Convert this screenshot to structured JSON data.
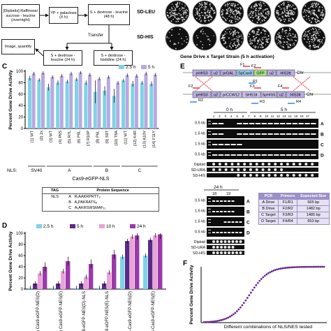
{
  "panel_letters": {
    "c": "C",
    "d": "D",
    "e": "E",
    "f": "F"
  },
  "flow": {
    "b1": "[Diploids] Raffinose/ sucrose - leucine (overnight)",
    "b2": "YP + galactose (X h)",
    "b3": "S + dextrose - leucine (48 h)",
    "transfer": "Transfer",
    "b4": "Image, quantify",
    "b5": "S + dextrose - leucine (24 h)",
    "b6": "S + dextrose - histidine (24 h)"
  },
  "plates": {
    "row1": "SD-LEU",
    "row2": "SD-HIS",
    "caption": "Gene Drive x Target Strain (5 h activation)"
  },
  "panelC": {
    "ylabel": "Percent Gene Drive Activity",
    "legend": [
      "2.5 h",
      "5 h"
    ],
    "nls_label": "NLS:",
    "groups": [
      "SV40",
      "A",
      "B",
      "C"
    ],
    "xlabel": "Cas9-eGFP-NLS",
    "table_headers": [
      "TAG",
      "Protein Sequence"
    ],
    "table_tag": "NLS",
    "table_rows": [
      {
        "id": "A",
        "seq": "R₁AAKRPRTT₉"
      },
      {
        "id": "B",
        "seq": "A₁PAKRATS₈"
      },
      {
        "id": "C",
        "seq": "A₁AKRSWSMAF₁₁"
      }
    ]
  },
  "panelD": {
    "ylabel": "Percent Gene Drive Activity",
    "legend": [
      "2.5 h",
      "5 h",
      "10 h",
      "24 h"
    ]
  },
  "panelE": {
    "construct_labels": [
      "prHIS3",
      "u2",
      "prGAL",
      "SpCas9",
      "GFP",
      "u2",
      "HIS3tt",
      "Chr"
    ],
    "target_labels": [
      "prHIS3",
      "u2",
      "prCCW12",
      "SHS1tt",
      "SpHIS5",
      "u2",
      "HIS3tt",
      "Chr"
    ],
    "primers_top": [
      "F1",
      "F2",
      "R1"
    ],
    "primers_bot": [
      "F2",
      "R2",
      "F3",
      "R3",
      "F4",
      "R4"
    ],
    "gel1": {
      "times": [
        "0 h",
        "5 h"
      ],
      "lanes": [
        "1",
        "2",
        "3",
        "4",
        "5",
        "6",
        "7",
        "8",
        "9",
        "10",
        "11",
        "12",
        "13",
        "14",
        "15",
        "16",
        "17"
      ],
      "sizes": [
        "0.5 kb",
        "1.5 kb",
        "1.5 kb",
        "0.5 kb"
      ],
      "rows": [
        "A",
        "B",
        "C",
        "D"
      ],
      "bottom": [
        "Diploid",
        "SD-URA",
        "SD-HIS"
      ]
    },
    "gel2": {
      "time": "24 h",
      "lanes_hi": [
        "18",
        "19"
      ],
      "sizes": [
        "0.5 kb",
        "1.5 kb",
        "1.5 kb",
        "0.5 kb"
      ],
      "rows": [
        "A",
        "B",
        "C",
        "D"
      ],
      "bottom": [
        "Diploid",
        "SD-URA",
        "SD-HIS"
      ]
    },
    "pcr_table": {
      "headers": [
        "PCR",
        "Primers",
        "Expected Size"
      ],
      "rows": [
        [
          "A",
          "Drive",
          "F1/R1",
          "565 bp"
        ],
        [
          "B",
          "Drive",
          "F2/R2",
          "1482 bp"
        ],
        [
          "C",
          "Target",
          "F3/R3",
          "1485 bp"
        ],
        [
          "D",
          "Target",
          "F4/R4",
          "653 bp"
        ]
      ]
    }
  },
  "panelF": {
    "ylabel": "Percent Gene Drive Activity",
    "xlabel": "Different combinations of NLS/NES tested"
  },
  "colors": {
    "cyan": "#7fd3e6",
    "blue": "#3b72c4",
    "pink": "#e9a3d7",
    "purple": "#7a2b90",
    "lavender": "#b9a9e0"
  },
  "chart_data": [
    {
      "type": "bar",
      "panel": "C",
      "categories": [
        "(1) WT",
        "(2) 2x",
        "(3) WT",
        "(4) P6S",
        "(5) R7L",
        "(6) P8L",
        "(7) R10P",
        "(8) P6L",
        "(9) S9T",
        "(10) T8A",
        "(11) WT",
        "(12) K4R",
        "(13) A10V",
        "(14) F11Y"
      ],
      "series": [
        {
          "name": "2.5 h",
          "values": [
            88,
            85,
            72,
            80,
            82,
            86,
            80,
            64,
            66,
            57,
            84,
            78,
            80,
            78
          ]
        },
        {
          "name": "5 h",
          "values": [
            96,
            97,
            90,
            92,
            96,
            98,
            94,
            87,
            90,
            80,
            93,
            92,
            96,
            94
          ]
        }
      ],
      "ylabel": "Percent Gene Drive Activity",
      "ylim": [
        0,
        100
      ],
      "yticks": [
        0,
        20,
        40,
        60,
        80,
        100
      ]
    },
    {
      "type": "bar",
      "panel": "D",
      "categories": [
        "(18) Cas9-eGFP-NES(D)",
        "(19) Cas9-eGFP-NES(E)",
        "(20) Cas9-eGFP-NES(D)-NLS",
        "(21) Cas9-eGFP-NES(E)-NLS",
        "(22) NLS-Cas9-eGFP-NES(D)",
        "(23) NLS-Cas9-eGFP-NES(E)"
      ],
      "series": [
        {
          "name": "2.5 h",
          "values": [
            2,
            2,
            2,
            2,
            58,
            60
          ]
        },
        {
          "name": "5 h",
          "values": [
            10,
            10,
            10,
            10,
            86,
            88
          ]
        },
        {
          "name": "10 h",
          "values": [
            28,
            32,
            22,
            30,
            94,
            96
          ]
        },
        {
          "name": "24 h",
          "values": [
            40,
            50,
            45,
            62,
            96,
            98
          ]
        }
      ],
      "ylabel": "Percent Gene Drive Activity",
      "ylim": [
        0,
        100
      ],
      "yticks": [
        0,
        20,
        40,
        60,
        80,
        100
      ]
    },
    {
      "type": "scatter",
      "panel": "F",
      "xlabel": "Different combinations of NLS/NES tested",
      "ylabel": "Percent Gene Drive Activity",
      "ylim": [
        0,
        100
      ]
    }
  ]
}
